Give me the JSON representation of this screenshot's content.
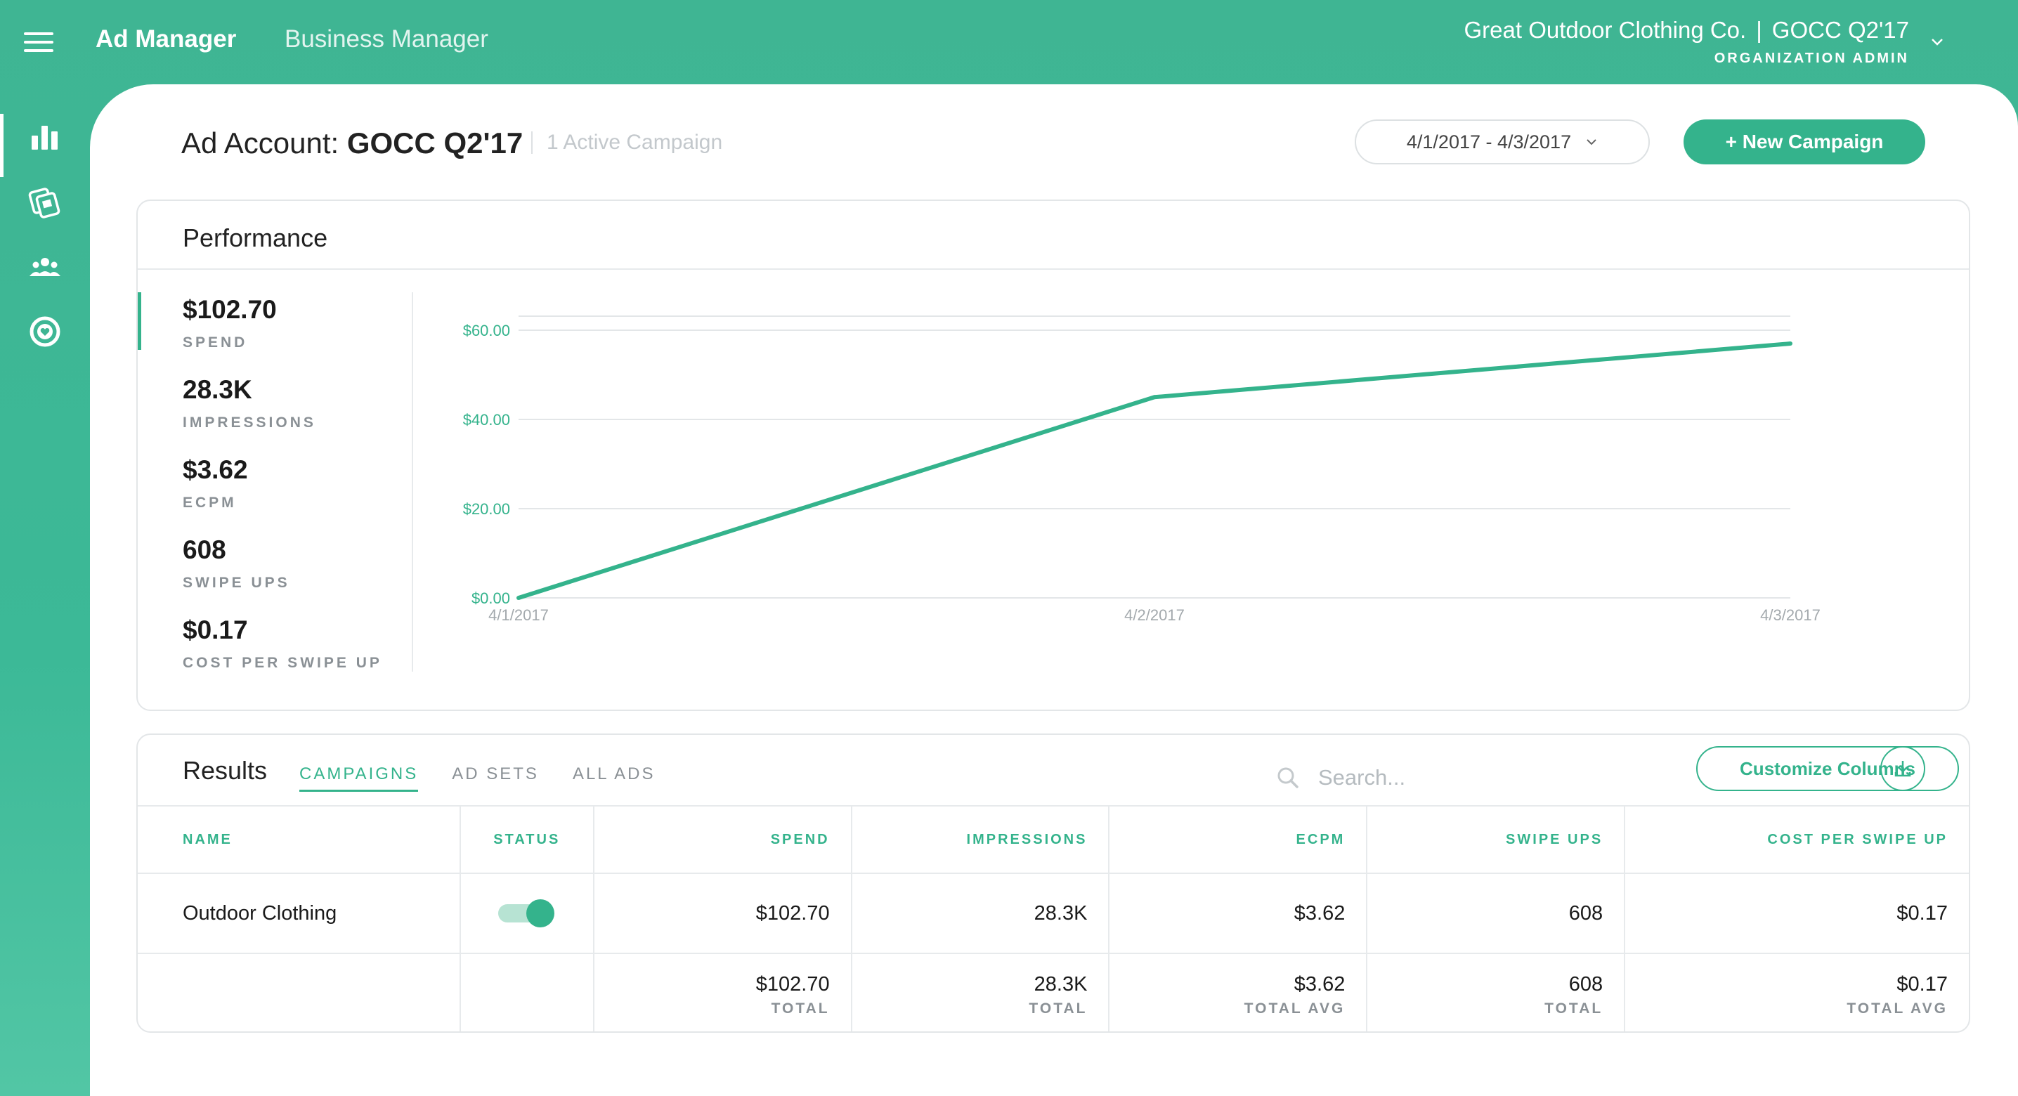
{
  "topbar": {
    "app_title": "Ad Manager",
    "business_link": "Business Manager",
    "org_name": "Great Outdoor Clothing Co.",
    "org_separator": "|",
    "account_name": "GOCC Q2'17",
    "role": "ORGANIZATION ADMIN"
  },
  "sidebar": {
    "items": [
      {
        "icon": "bar-chart-icon",
        "active": true
      },
      {
        "icon": "creative-icon",
        "active": false
      },
      {
        "icon": "audience-icon",
        "active": false
      },
      {
        "icon": "help-icon",
        "active": false
      }
    ]
  },
  "account": {
    "title_prefix": "Ad Account:",
    "title_name": "GOCC Q2'17",
    "active_campaigns": "1 Active Campaign",
    "date_range": "4/1/2017 - 4/3/2017",
    "new_campaign": "+ New Campaign"
  },
  "performance": {
    "title": "Performance",
    "metrics": [
      {
        "value": "$102.70",
        "label": "SPEND"
      },
      {
        "value": "28.3K",
        "label": "IMPRESSIONS"
      },
      {
        "value": "$3.62",
        "label": "ECPM"
      },
      {
        "value": "608",
        "label": "SWIPE UPS"
      },
      {
        "value": "$0.17",
        "label": "COST PER SWIPE UP"
      }
    ]
  },
  "chart_data": {
    "type": "line",
    "categories": [
      "4/1/2017",
      "4/2/2017",
      "4/3/2017"
    ],
    "series": [
      {
        "values": [
          0,
          45,
          57
        ],
        "color": "#34b38c"
      }
    ],
    "y_ticks": [
      "$0.00",
      "$20.00",
      "$40.00",
      "$60.00"
    ],
    "ylim": [
      0,
      60
    ],
    "grid": true,
    "title": "",
    "xlabel": "",
    "ylabel": ""
  },
  "results": {
    "title": "Results",
    "tabs": [
      {
        "label": "CAMPAIGNS",
        "active": true
      },
      {
        "label": "AD SETS",
        "active": false
      },
      {
        "label": "ALL ADS",
        "active": false
      }
    ],
    "search_placeholder": "Search...",
    "customize_columns": "Customize Columns",
    "columns": [
      "NAME",
      "STATUS",
      "SPEND",
      "IMPRESSIONS",
      "ECPM",
      "SWIPE UPS",
      "COST PER SWIPE UP"
    ],
    "rows": [
      {
        "name": "Outdoor Clothing",
        "status_on": true,
        "spend": "$102.70",
        "impressions": "28.3K",
        "ecpm": "$3.62",
        "swipe_ups": "608",
        "cpsu": "$0.17"
      }
    ],
    "totals": {
      "spend": "$102.70",
      "spend_label": "TOTAL",
      "impressions": "28.3K",
      "impressions_label": "TOTAL",
      "ecpm": "$3.62",
      "ecpm_label": "TOTAL AVG",
      "swipe_ups": "608",
      "swipe_ups_label": "TOTAL",
      "cpsu": "$0.17",
      "cpsu_label": "TOTAL AVG"
    }
  },
  "colors": {
    "accent": "#34b38c",
    "header_green": "#3fb593"
  }
}
